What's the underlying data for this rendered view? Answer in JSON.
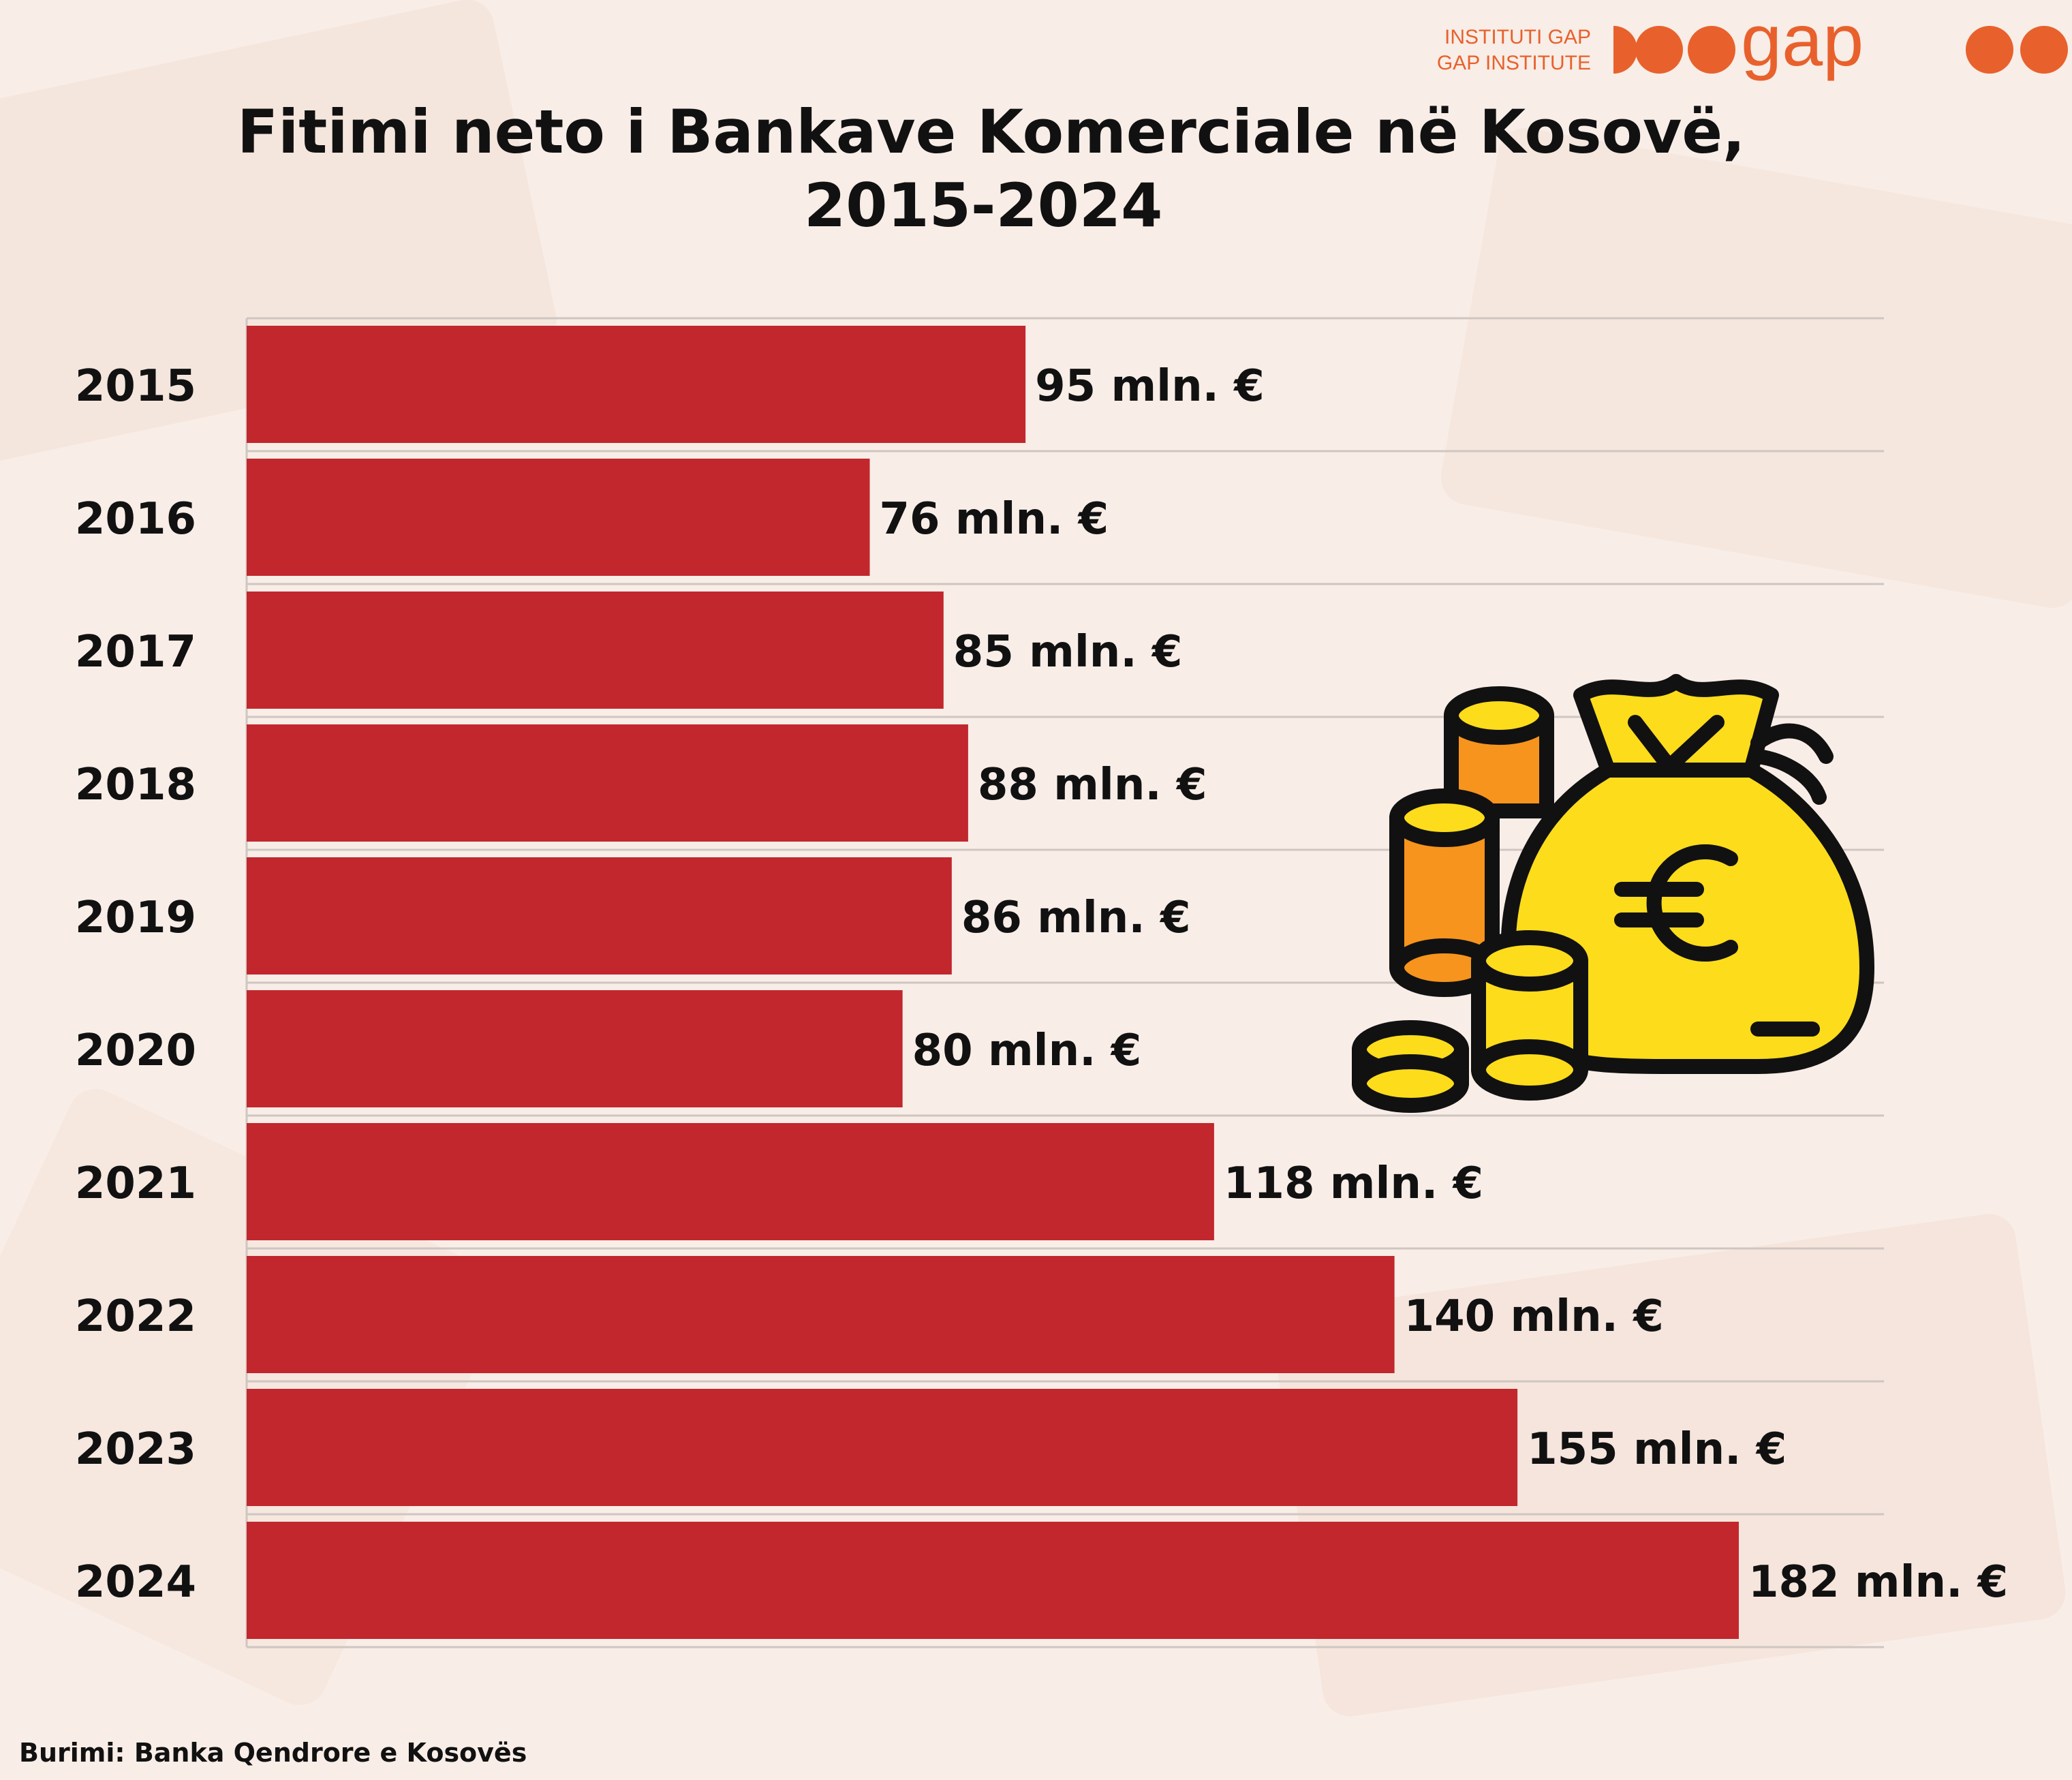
{
  "header": {
    "title_line1": "Fitimi neto i Bankave Komerciale në Kosovë,",
    "title_line2": "2015-2024",
    "logo_line1": "INSTITUTI GAP",
    "logo_line2": "GAP INSTITUTE",
    "logo_word": "gap"
  },
  "footer": {
    "source": "Burimi: Banka Qendrore e Kosovës"
  },
  "colors": {
    "bar": "#c1272d",
    "logo": "#e8612c",
    "background": "#f8ede7",
    "coin_yellow": "#fddc1b",
    "coin_orange": "#f7941d"
  },
  "icons": [
    "money-bag-euro-icon",
    "coin-stack-icon"
  ],
  "chart_data": {
    "type": "bar",
    "orientation": "horizontal",
    "categories": [
      "2015",
      "2016",
      "2017",
      "2018",
      "2019",
      "2020",
      "2021",
      "2022",
      "2023",
      "2024"
    ],
    "values": [
      95,
      76,
      85,
      88,
      86,
      80,
      118,
      140,
      155,
      182
    ],
    "value_labels": [
      "95 mln. €",
      "76 mln. €",
      "85 mln. €",
      "88 mln. €",
      "86 mln. €",
      "80 mln. €",
      "118 mln. €",
      "140 mln. €",
      "155 mln. €",
      "182 mln. €"
    ],
    "unit": "mln. €",
    "xlim": [
      0,
      182
    ],
    "grid": true
  }
}
